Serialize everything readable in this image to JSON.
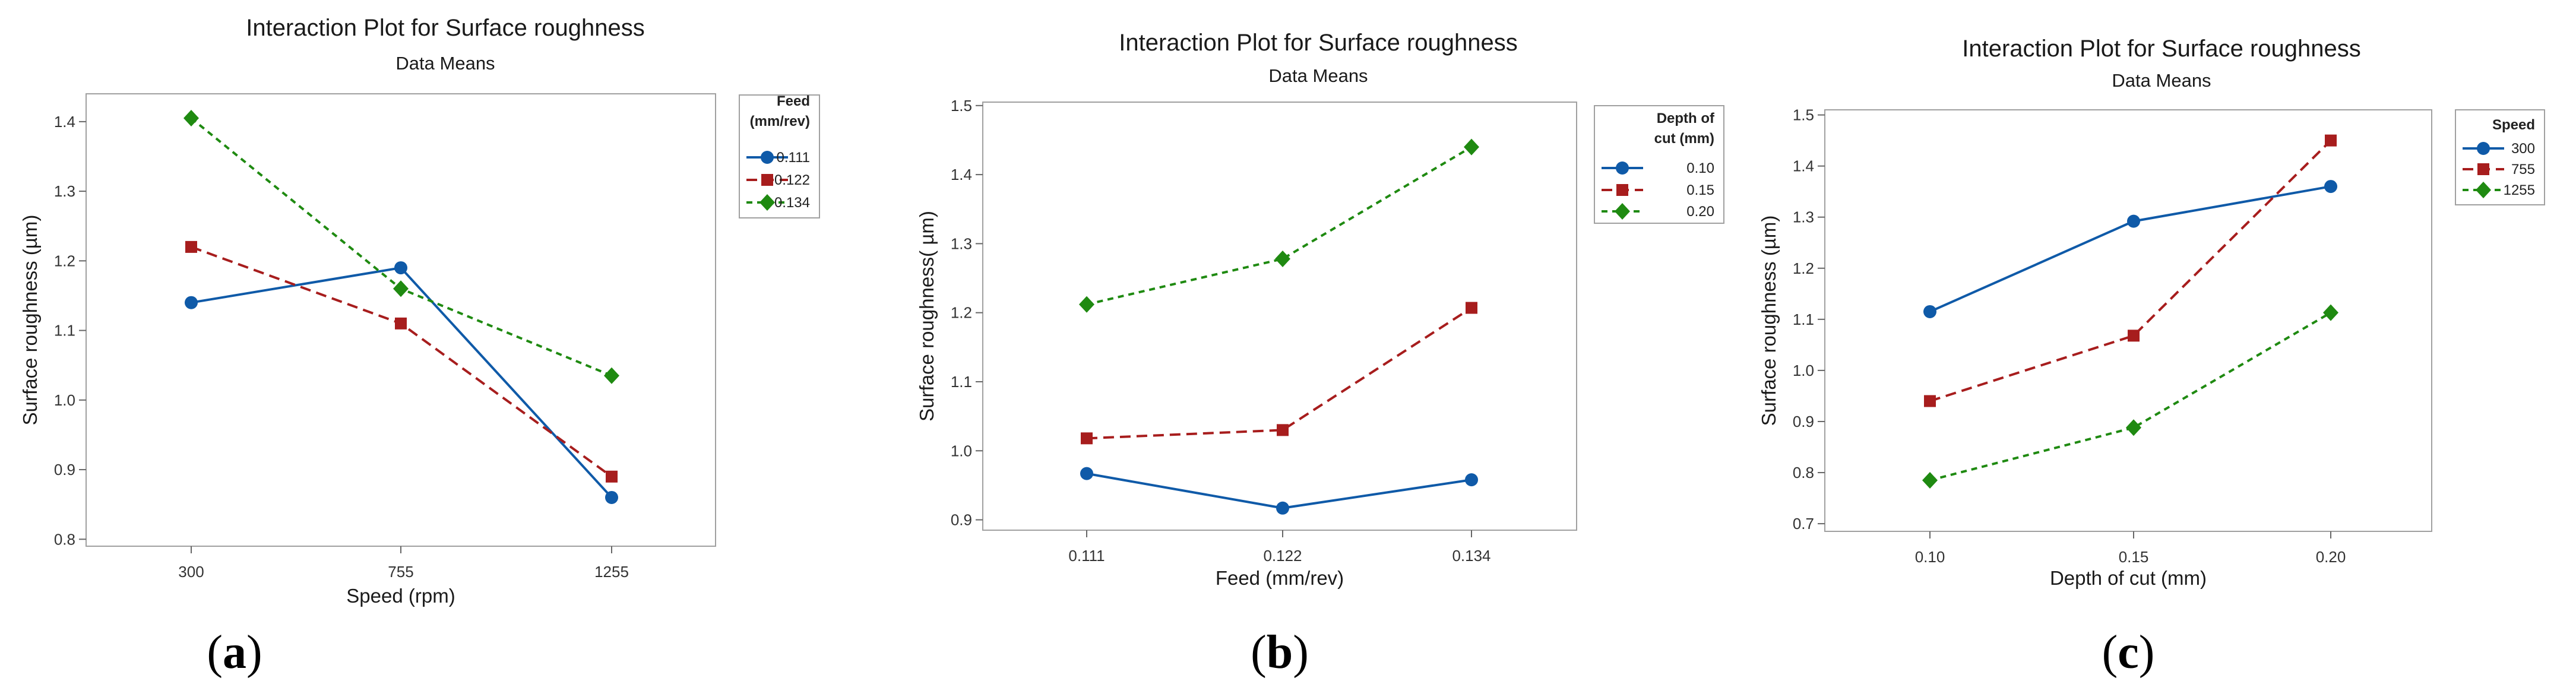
{
  "chart_data": [
    {
      "type": "line",
      "title": "Interaction Plot for Surface roughness",
      "subtitle": "Data Means",
      "xlabel": "Speed (rpm)",
      "ylabel": "Surface roughness (µm)",
      "categories": [
        "300",
        "755",
        "1255"
      ],
      "yticks": [
        "0.8",
        "0.9",
        "1.0",
        "1.1",
        "1.2",
        "1.3",
        "1.4"
      ],
      "ylim": [
        0.79,
        1.44
      ],
      "legend_title": [
        "Feed",
        "(mm/rev)"
      ],
      "series": [
        {
          "name": "0.111",
          "values": [
            1.14,
            1.19,
            0.86
          ],
          "color": "#0f5aa8",
          "marker": "circle",
          "dash": "solid"
        },
        {
          "name": "0.122",
          "values": [
            1.22,
            1.11,
            0.89
          ],
          "color": "#a71d1d",
          "marker": "square",
          "dash": "dashed"
        },
        {
          "name": "0.134",
          "values": [
            1.405,
            1.16,
            1.035
          ],
          "color": "#1f8a11",
          "marker": "diamond",
          "dash": "dotted"
        }
      ],
      "caption": {
        "open": "(",
        "letter": "a",
        "close": ")"
      }
    },
    {
      "type": "line",
      "title": "Interaction Plot for Surface roughness",
      "subtitle": "Data Means",
      "xlabel": "Feed (mm/rev)",
      "ylabel": "Surface roughness( µm)",
      "categories": [
        "0.111",
        "0.122",
        "0.134"
      ],
      "yticks": [
        "0.9",
        "1.0",
        "1.1",
        "1.2",
        "1.3",
        "1.4",
        "1.5"
      ],
      "ylim": [
        0.885,
        1.505
      ],
      "legend_title": [
        "Depth of",
        "cut (mm)"
      ],
      "series": [
        {
          "name": "0.10",
          "values": [
            0.967,
            0.917,
            0.958
          ],
          "color": "#0f5aa8",
          "marker": "circle",
          "dash": "solid"
        },
        {
          "name": "0.15",
          "values": [
            1.018,
            1.03,
            1.207
          ],
          "color": "#a71d1d",
          "marker": "square",
          "dash": "dashed"
        },
        {
          "name": "0.20",
          "values": [
            1.212,
            1.278,
            1.44
          ],
          "color": "#1f8a11",
          "marker": "diamond",
          "dash": "dotted"
        }
      ],
      "caption": {
        "open": "(",
        "letter": "b",
        "close": ")"
      }
    },
    {
      "type": "line",
      "title": "Interaction Plot for Surface roughness",
      "subtitle": "Data Means",
      "xlabel": "Depth of cut (mm)",
      "ylabel": "Surface roughness (µm)",
      "categories": [
        "0.10",
        "0.15",
        "0.20"
      ],
      "yticks": [
        "0.7",
        "0.8",
        "0.9",
        "1.0",
        "1.1",
        "1.2",
        "1.3",
        "1.4",
        "1.5"
      ],
      "ylim": [
        0.685,
        1.51
      ],
      "legend_title": [
        "Speed"
      ],
      "series": [
        {
          "name": "300",
          "values": [
            1.115,
            1.292,
            1.36
          ],
          "color": "#0f5aa8",
          "marker": "circle",
          "dash": "solid"
        },
        {
          "name": "755",
          "values": [
            0.94,
            1.068,
            1.45
          ],
          "color": "#a71d1d",
          "marker": "square",
          "dash": "dashed"
        },
        {
          "name": "1255",
          "values": [
            0.785,
            0.888,
            1.113
          ],
          "color": "#1f8a11",
          "marker": "diamond",
          "dash": "dotted"
        }
      ],
      "caption": {
        "open": "(",
        "letter": "c",
        "close": ")"
      }
    }
  ]
}
